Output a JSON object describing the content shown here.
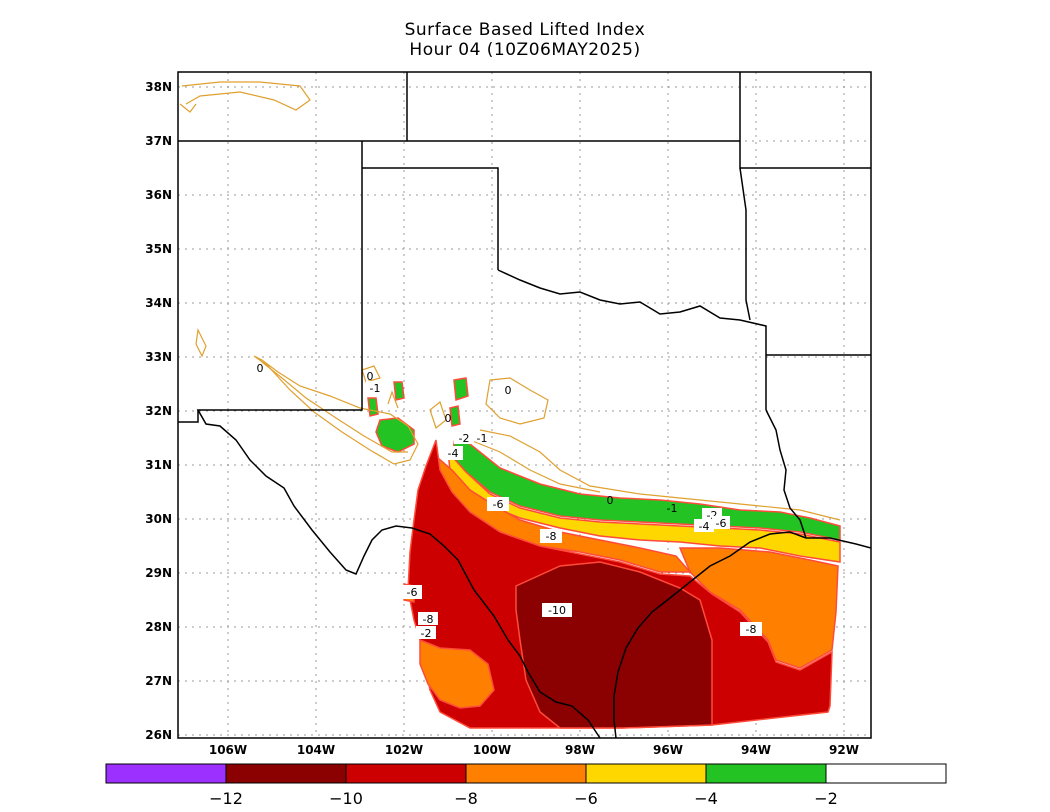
{
  "title": {
    "line1": "Surface Based Lifted Index",
    "line2": "Hour 04 (10Z06MAY2025)"
  },
  "axes": {
    "lat_labels": [
      "38N",
      "37N",
      "36N",
      "35N",
      "34N",
      "33N",
      "32N",
      "31N",
      "30N",
      "29N",
      "28N",
      "27N",
      "26N"
    ],
    "lon_labels": [
      "106W",
      "104W",
      "102W",
      "100W",
      "98W",
      "96W",
      "94W",
      "92W"
    ]
  },
  "contour_labels": [
    "0",
    "0",
    "-1",
    "0",
    "0",
    "-2",
    "-1",
    "-4",
    "0",
    "-6",
    "-1",
    "-2",
    "-4",
    "-6",
    "-8",
    "-10",
    "-6",
    "-8",
    "-2",
    "-8"
  ],
  "colorbar": {
    "colors": [
      "#9b30ff",
      "#8b0000",
      "#cc0000",
      "#ff8000",
      "#ffd700",
      "#22c322",
      "#ffffff"
    ],
    "ticks": [
      "−12",
      "−10",
      "−8",
      "−6",
      "−4",
      "−2"
    ]
  }
}
